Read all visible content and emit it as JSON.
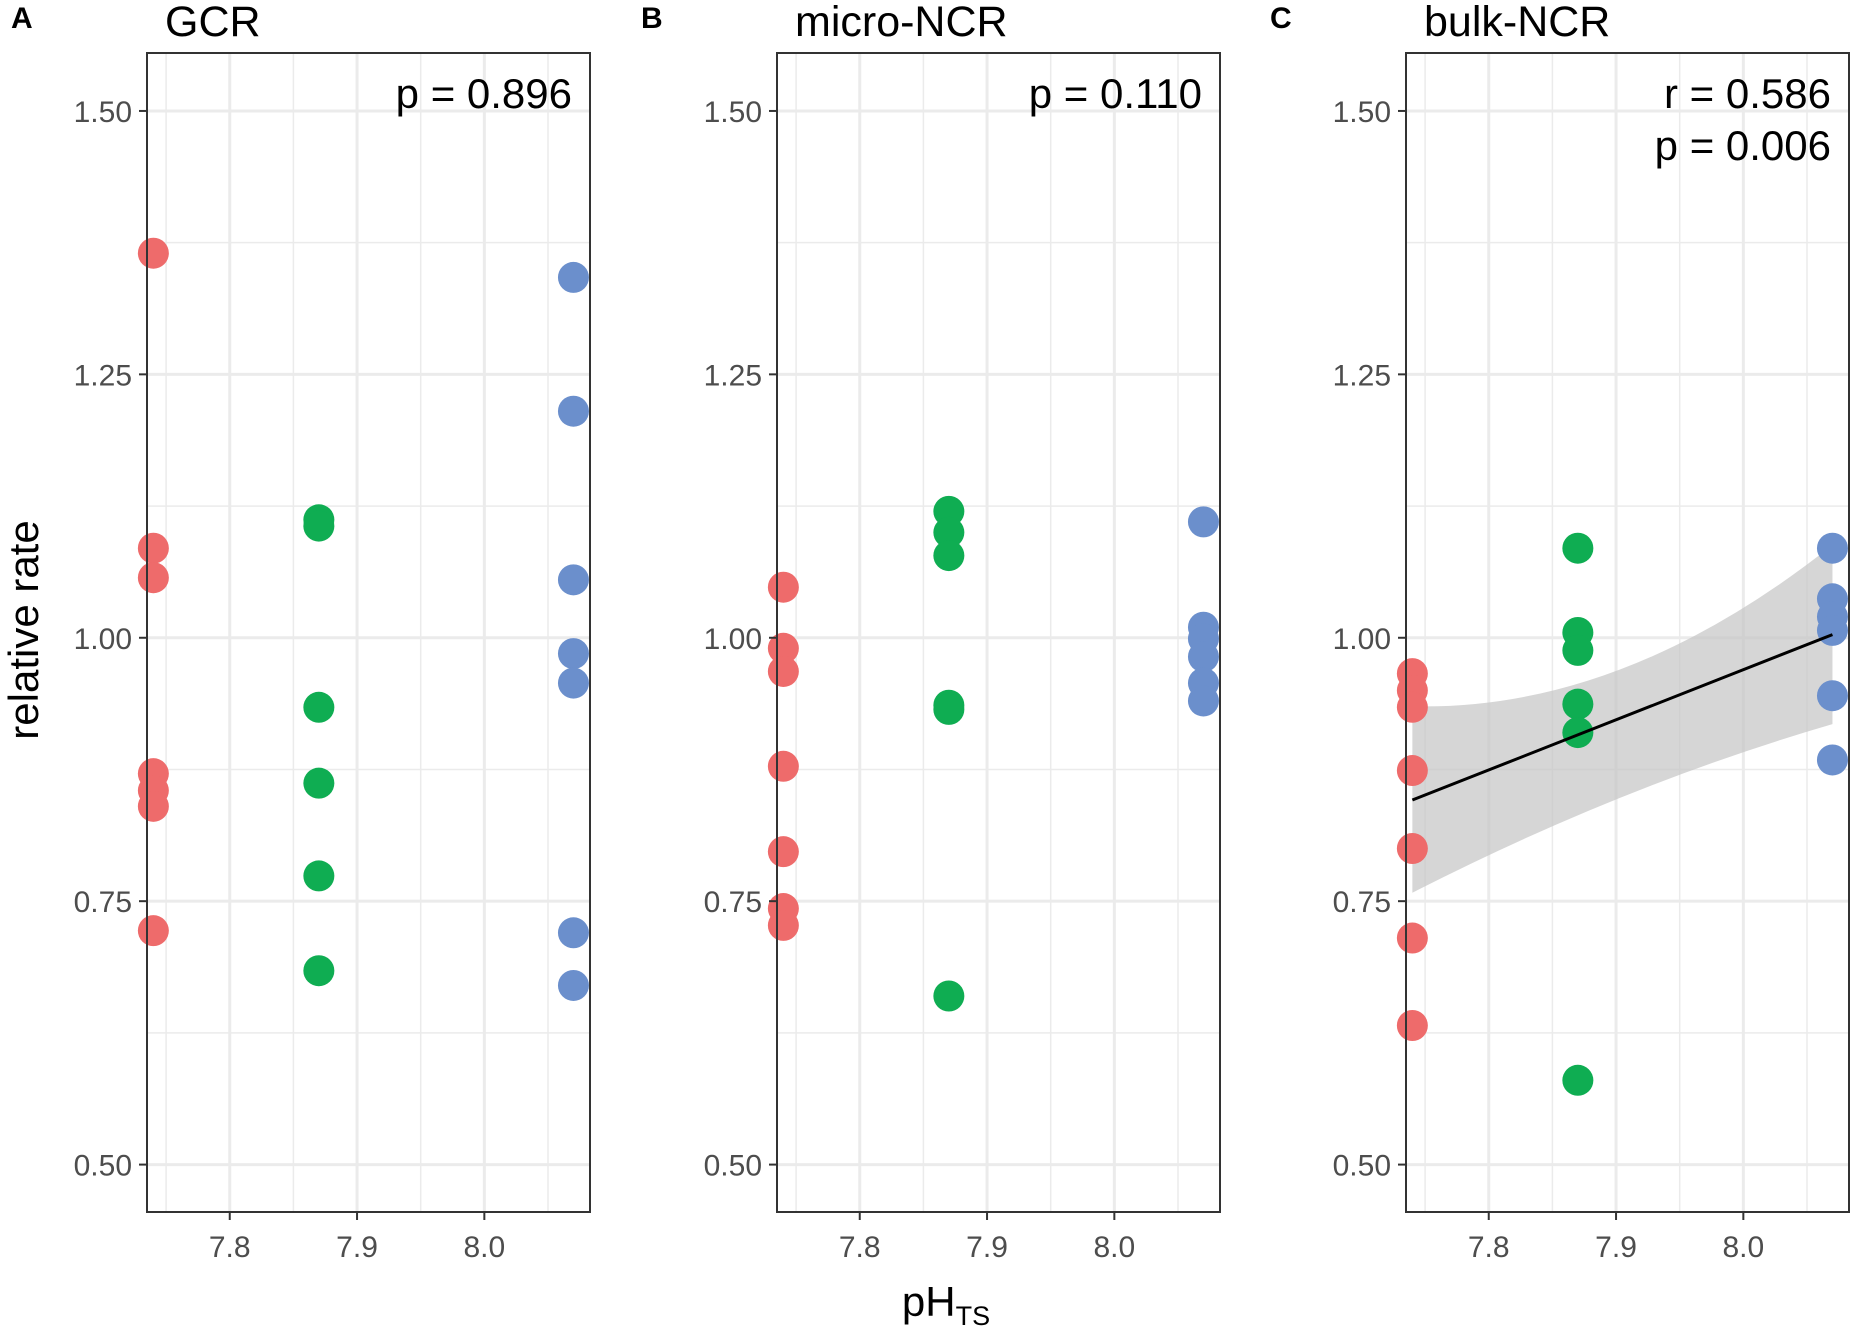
{
  "figure": {
    "ylabel": "relative rate",
    "xlabel_main": "pH",
    "xlabel_sub": "TS"
  },
  "colors": {
    "low_ph": "#EE6B6B",
    "mid_ph": "#0FAD52",
    "high_ph": "#6B8FCC",
    "grid": "#EBEBEB",
    "border": "#333333",
    "fit_line": "#000000",
    "ci_band": "#C4C4C4"
  },
  "chart_data": [
    {
      "type": "scatter",
      "panel_letter": "A",
      "title": "GCR",
      "annotations": [
        "p = 0.896"
      ],
      "xlim": [
        7.735,
        8.083
      ],
      "ylim": [
        0.455,
        1.555
      ],
      "xticks": [
        "7.8",
        "7.9",
        "8.0"
      ],
      "yticks": [
        "0.50",
        "0.75",
        "1.00",
        "1.25",
        "1.50"
      ],
      "series": [
        {
          "name": "pH 7.74",
          "color_key": "low_ph",
          "x": 7.74,
          "y": [
            1.365,
            1.085,
            1.057,
            0.871,
            0.855,
            0.84,
            0.722
          ]
        },
        {
          "name": "pH 7.87",
          "color_key": "mid_ph",
          "x": 7.87,
          "y": [
            1.112,
            1.106,
            0.934,
            0.862,
            0.774,
            0.684
          ]
        },
        {
          "name": "pH 8.07",
          "color_key": "high_ph",
          "x": 8.07,
          "y": [
            1.342,
            1.215,
            1.055,
            0.985,
            0.957,
            0.72,
            0.67
          ]
        }
      ],
      "fit": null
    },
    {
      "type": "scatter",
      "panel_letter": "B",
      "title": "micro-NCR",
      "annotations": [
        "p = 0.110"
      ],
      "xlim": [
        7.735,
        8.083
      ],
      "ylim": [
        0.455,
        1.555
      ],
      "xticks": [
        "7.8",
        "7.9",
        "8.0"
      ],
      "yticks": [
        "0.50",
        "0.75",
        "1.00",
        "1.25",
        "1.50"
      ],
      "series": [
        {
          "name": "pH 7.74",
          "color_key": "low_ph",
          "x": 7.74,
          "y": [
            1.048,
            0.99,
            0.968,
            0.878,
            0.797,
            0.743,
            0.727
          ]
        },
        {
          "name": "pH 7.87",
          "color_key": "mid_ph",
          "x": 7.87,
          "y": [
            1.12,
            1.1,
            1.078,
            0.936,
            0.932,
            0.66
          ]
        },
        {
          "name": "pH 8.07",
          "color_key": "high_ph",
          "x": 8.07,
          "y": [
            1.11,
            1.01,
            0.999,
            0.982,
            0.957,
            0.94
          ]
        }
      ],
      "fit": null
    },
    {
      "type": "scatter",
      "panel_letter": "C",
      "title": "bulk-NCR",
      "annotations": [
        "r = 0.586",
        "p = 0.006"
      ],
      "xlim": [
        7.735,
        8.083
      ],
      "ylim": [
        0.455,
        1.555
      ],
      "xticks": [
        "7.8",
        "7.9",
        "8.0"
      ],
      "yticks": [
        "0.50",
        "0.75",
        "1.00",
        "1.25",
        "1.50"
      ],
      "series": [
        {
          "name": "pH 7.74",
          "color_key": "low_ph",
          "x": 7.74,
          "y": [
            0.966,
            0.95,
            0.934,
            0.874,
            0.8,
            0.715,
            0.632
          ]
        },
        {
          "name": "pH 7.87",
          "color_key": "mid_ph",
          "x": 7.87,
          "y": [
            1.085,
            1.005,
            0.988,
            0.937,
            0.91,
            0.58
          ]
        },
        {
          "name": "pH 8.07",
          "color_key": "high_ph",
          "x": 8.07,
          "y": [
            1.085,
            1.037,
            1.02,
            1.007,
            0.945,
            0.884
          ]
        }
      ],
      "fit": {
        "x": [
          7.74,
          8.07
        ],
        "y": [
          0.846,
          1.003
        ],
        "ci_upper": [
          0.935,
          1.088
        ],
        "ci_mid_upper": [
          0.93
        ],
        "ci_lower": [
          0.758,
          0.918
        ],
        "ci_mid_lower": [
          0.86
        ]
      }
    }
  ]
}
